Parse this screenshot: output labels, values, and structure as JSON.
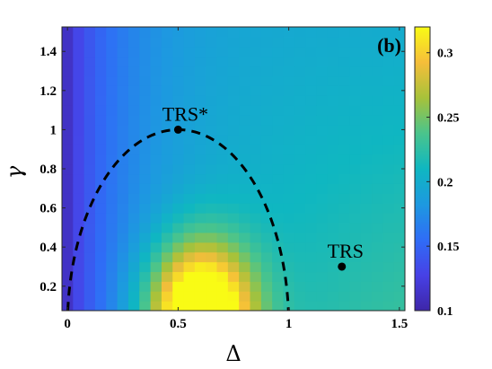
{
  "chart_data": {
    "type": "heatmap",
    "panel_label": "(b)",
    "xlabel": "Δ",
    "ylabel": "γ",
    "xlim": [
      -0.025,
      1.525
    ],
    "ylim": [
      0.075,
      1.525
    ],
    "xticks": [
      "0",
      "0.5",
      "1",
      "1.5"
    ],
    "yticks": [
      "0.2",
      "0.4",
      "0.6",
      "0.8",
      "1",
      "1.2",
      "1.4"
    ],
    "grid": false,
    "colormap": "parula",
    "colorbar": {
      "range": [
        0.1,
        0.32
      ],
      "ticks": [
        "0.1",
        "0.15",
        "0.2",
        "0.25",
        "0.3"
      ]
    },
    "grid_x": {
      "start": 0.0,
      "step": 0.05,
      "count": 31
    },
    "grid_y": {
      "start": 0.1,
      "step": 0.05,
      "count": 29
    },
    "field_model": {
      "base": 0.118,
      "background_amp": 0.082,
      "background_x_scale": 0.3,
      "background_y_coef": 0.02,
      "peak_amp": 0.185,
      "peak_center": [
        0.6,
        0.05
      ],
      "peak_width_x": 0.23,
      "peak_width_y": 0.36,
      "left_edge_drop": 0.005
    },
    "annotations": [
      {
        "label": "TRS*",
        "x": 0.5,
        "y": 1.0
      },
      {
        "label": "TRS",
        "x": 1.24,
        "y": 0.3
      }
    ],
    "curve": {
      "style": "dashed",
      "center": 0.5,
      "half_width": 0.5,
      "height": 1.0,
      "y_min": 0.075
    },
    "colors": {
      "dashed_curve": "#000000",
      "markers": "#000000"
    }
  }
}
